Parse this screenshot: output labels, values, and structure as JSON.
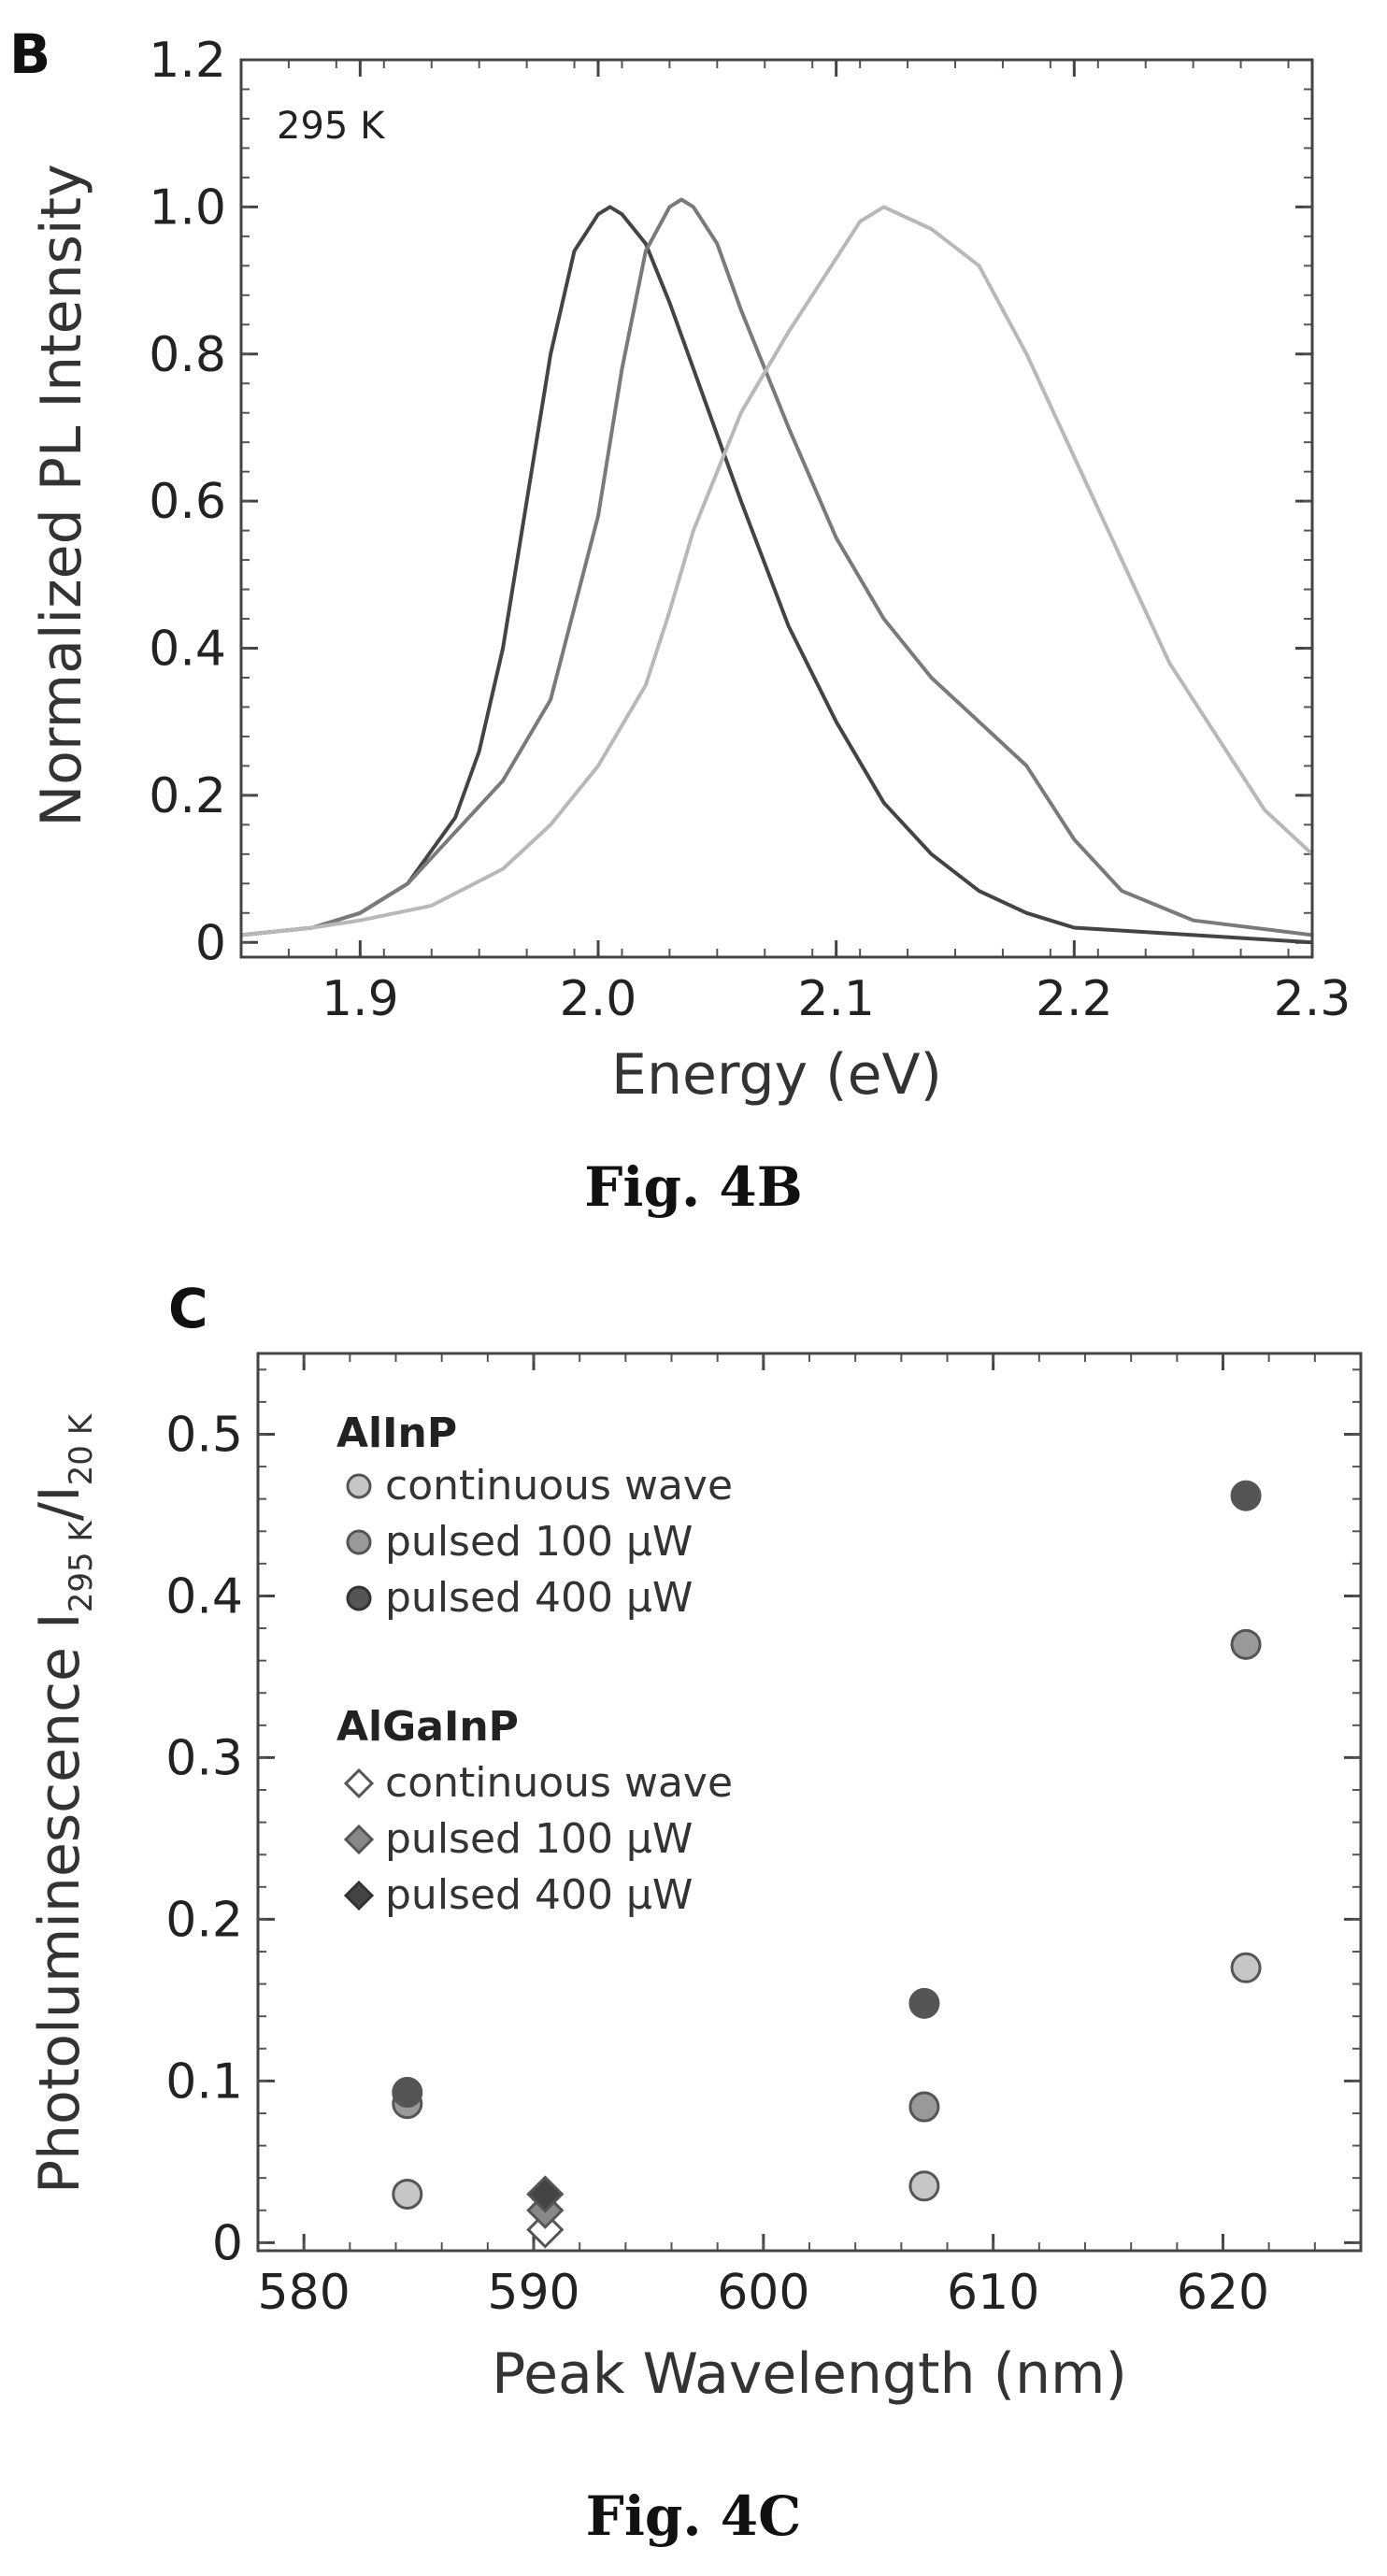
{
  "chart_data": [
    {
      "type": "line",
      "panel_letter": "B",
      "caption": "Fig. 4B",
      "annotation": "295 K",
      "xlabel": "Energy (eV)",
      "ylabel": "Normalized PL Intensity",
      "xlim": [
        1.85,
        2.3
      ],
      "ylim": [
        -0.02,
        1.2
      ],
      "xticks": [
        1.9,
        2.0,
        2.1,
        2.2,
        2.3
      ],
      "xtick_labels": [
        "1.9",
        "2.0",
        "2.1",
        "2.2",
        "2.3"
      ],
      "yticks": [
        0,
        0.2,
        0.4,
        0.6,
        0.8,
        1.0,
        1.2
      ],
      "ytick_labels": [
        "0",
        "0.2",
        "0.4",
        "0.6",
        "0.8",
        "1.0",
        "1.2"
      ],
      "grid": false,
      "series": [
        {
          "color": "#444444",
          "x": [
            1.85,
            1.88,
            1.9,
            1.92,
            1.94,
            1.95,
            1.96,
            1.97,
            1.98,
            1.99,
            2.0,
            2.005,
            2.01,
            2.02,
            2.03,
            2.04,
            2.06,
            2.08,
            2.1,
            2.12,
            2.14,
            2.16,
            2.18,
            2.2,
            2.25,
            2.3
          ],
          "y": [
            0.01,
            0.02,
            0.04,
            0.08,
            0.17,
            0.26,
            0.4,
            0.6,
            0.8,
            0.94,
            0.99,
            1.0,
            0.99,
            0.95,
            0.87,
            0.78,
            0.6,
            0.43,
            0.3,
            0.19,
            0.12,
            0.07,
            0.04,
            0.02,
            0.01,
            0.0
          ]
        },
        {
          "color": "#7a7a7a",
          "x": [
            1.85,
            1.88,
            1.9,
            1.92,
            1.94,
            1.96,
            1.98,
            2.0,
            2.01,
            2.02,
            2.03,
            2.035,
            2.04,
            2.05,
            2.06,
            2.08,
            2.1,
            2.12,
            2.14,
            2.16,
            2.18,
            2.2,
            2.22,
            2.25,
            2.3
          ],
          "y": [
            0.01,
            0.02,
            0.04,
            0.08,
            0.15,
            0.22,
            0.33,
            0.58,
            0.78,
            0.94,
            1.0,
            1.01,
            1.0,
            0.95,
            0.86,
            0.7,
            0.55,
            0.44,
            0.36,
            0.3,
            0.24,
            0.14,
            0.07,
            0.03,
            0.01
          ]
        },
        {
          "color": "#b8b8b8",
          "x": [
            1.85,
            1.88,
            1.9,
            1.93,
            1.96,
            1.98,
            2.0,
            2.02,
            2.03,
            2.04,
            2.06,
            2.08,
            2.1,
            2.11,
            2.12,
            2.14,
            2.16,
            2.18,
            2.2,
            2.22,
            2.24,
            2.26,
            2.28,
            2.3
          ],
          "y": [
            0.01,
            0.02,
            0.03,
            0.05,
            0.1,
            0.16,
            0.24,
            0.35,
            0.45,
            0.56,
            0.72,
            0.83,
            0.93,
            0.98,
            1.0,
            0.97,
            0.92,
            0.8,
            0.66,
            0.52,
            0.38,
            0.28,
            0.18,
            0.12
          ]
        }
      ]
    },
    {
      "type": "scatter",
      "panel_letter": "C",
      "caption": "Fig. 4C",
      "xlabel": "Peak Wavelength (nm)",
      "ylabel": {
        "main": "Photoluminescence I",
        "sub1": "295 K",
        "slash": "/I",
        "sub2": "20 K"
      },
      "xlim": [
        578,
        626
      ],
      "ylim": [
        -0.005,
        0.55
      ],
      "xticks": [
        580,
        590,
        600,
        610,
        620
      ],
      "xtick_labels": [
        "580",
        "590",
        "600",
        "610",
        "620"
      ],
      "yticks": [
        0,
        0.1,
        0.2,
        0.3,
        0.4,
        0.5
      ],
      "ytick_labels": [
        "0",
        "0.1",
        "0.2",
        "0.3",
        "0.4",
        "0.5"
      ],
      "grid": false,
      "legend_position": "top-left",
      "legend_groups": [
        {
          "title": "AlInP",
          "entries": [
            {
              "label": "continuous wave",
              "marker": "circle",
              "color": "#c6c6c6"
            },
            {
              "label": "pulsed 100 μW",
              "marker": "circle",
              "color": "#999999"
            },
            {
              "label": "pulsed 400 μW",
              "marker": "circle",
              "color": "#555555"
            }
          ]
        },
        {
          "title": "AlGaInP",
          "entries": [
            {
              "label": "continuous wave",
              "marker": "diamond",
              "color": "#ffffff"
            },
            {
              "label": "pulsed 100 μW",
              "marker": "diamond",
              "color": "#888888"
            },
            {
              "label": "pulsed 400 μW",
              "marker": "diamond",
              "color": "#444444"
            }
          ]
        }
      ],
      "series": [
        {
          "group": "AlInP",
          "label": "continuous wave",
          "marker": "circle",
          "color": "#c6c6c6",
          "x": [
            584.5,
            607,
            621
          ],
          "y": [
            0.03,
            0.035,
            0.17
          ]
        },
        {
          "group": "AlInP",
          "label": "pulsed 100 μW",
          "marker": "circle",
          "color": "#999999",
          "x": [
            584.5,
            607,
            621
          ],
          "y": [
            0.086,
            0.084,
            0.37
          ]
        },
        {
          "group": "AlInP",
          "label": "pulsed 400 μW",
          "marker": "circle",
          "color": "#555555",
          "x": [
            584.5,
            607,
            621
          ],
          "y": [
            0.093,
            0.148,
            0.462
          ]
        },
        {
          "group": "AlGaInP",
          "label": "continuous wave",
          "marker": "diamond",
          "color": "#ffffff",
          "x": [
            590.5
          ],
          "y": [
            0.008
          ]
        },
        {
          "group": "AlGaInP",
          "label": "pulsed 100 μW",
          "marker": "diamond",
          "color": "#888888",
          "x": [
            590.5
          ],
          "y": [
            0.02
          ]
        },
        {
          "group": "AlGaInP",
          "label": "pulsed 400 μW",
          "marker": "diamond",
          "color": "#444444",
          "x": [
            590.5
          ],
          "y": [
            0.03
          ]
        }
      ]
    }
  ]
}
